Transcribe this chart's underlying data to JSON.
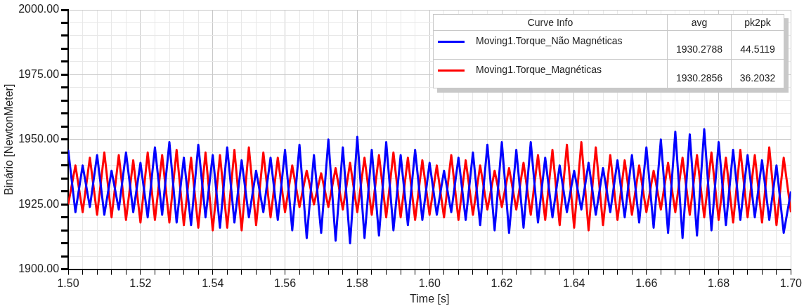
{
  "chart_data": {
    "type": "line",
    "xlabel": "Time [s]",
    "ylabel": "Binário [NewtonMeter]",
    "x": [
      1.5,
      1.502,
      1.504,
      1.506,
      1.508,
      1.51,
      1.512,
      1.514,
      1.516,
      1.518,
      1.52,
      1.522,
      1.524,
      1.526,
      1.528,
      1.53,
      1.532,
      1.534,
      1.536,
      1.538,
      1.54,
      1.542,
      1.544,
      1.546,
      1.548,
      1.55,
      1.552,
      1.554,
      1.556,
      1.558,
      1.56,
      1.562,
      1.564,
      1.566,
      1.568,
      1.57,
      1.572,
      1.574,
      1.576,
      1.578,
      1.58,
      1.582,
      1.584,
      1.586,
      1.588,
      1.59,
      1.592,
      1.594,
      1.596,
      1.598,
      1.6,
      1.602,
      1.604,
      1.606,
      1.608,
      1.61,
      1.612,
      1.614,
      1.616,
      1.618,
      1.62,
      1.622,
      1.624,
      1.626,
      1.628,
      1.63,
      1.632,
      1.634,
      1.636,
      1.638,
      1.64,
      1.642,
      1.644,
      1.646,
      1.648,
      1.65,
      1.652,
      1.654,
      1.656,
      1.658,
      1.66,
      1.662,
      1.664,
      1.666,
      1.668,
      1.67,
      1.672,
      1.674,
      1.676,
      1.678,
      1.68,
      1.682,
      1.684,
      1.686,
      1.688,
      1.69,
      1.692,
      1.694,
      1.696,
      1.698,
      1.7
    ],
    "series": [
      {
        "name": "Moving1.Torque_Não Magnéticas",
        "color": "#0000ff",
        "values": [
          1946,
          1922,
          1940,
          1924,
          1944,
          1921,
          1938,
          1923,
          1945,
          1922,
          1941,
          1920,
          1947,
          1921,
          1949,
          1918,
          1943,
          1917,
          1948,
          1920,
          1944,
          1916,
          1947,
          1918,
          1942,
          1920,
          1938,
          1922,
          1943,
          1919,
          1946,
          1915,
          1948,
          1912,
          1944,
          1914,
          1950,
          1911,
          1947,
          1910,
          1951,
          1912,
          1946,
          1913,
          1949,
          1915,
          1944,
          1917,
          1946,
          1919,
          1941,
          1921,
          1938,
          1922,
          1943,
          1919,
          1945,
          1917,
          1948,
          1915,
          1949,
          1914,
          1946,
          1916,
          1949,
          1918,
          1943,
          1920,
          1940,
          1922,
          1938,
          1923,
          1941,
          1921,
          1939,
          1922,
          1942,
          1920,
          1944,
          1918,
          1947,
          1916,
          1950,
          1914,
          1953,
          1912,
          1952,
          1913,
          1954,
          1915,
          1949,
          1917,
          1946,
          1919,
          1944,
          1920,
          1942,
          1919,
          1940,
          1914,
          1930
        ]
      },
      {
        "name": "Moving1.Torque_Magnéticas",
        "color": "#ff0000",
        "values": [
          1925,
          1940,
          1922,
          1943,
          1921,
          1945,
          1920,
          1944,
          1919,
          1942,
          1918,
          1945,
          1919,
          1944,
          1918,
          1946,
          1917,
          1943,
          1916,
          1945,
          1915,
          1944,
          1916,
          1946,
          1915,
          1947,
          1917,
          1945,
          1920,
          1943,
          1922,
          1940,
          1924,
          1938,
          1925,
          1937,
          1924,
          1939,
          1923,
          1941,
          1922,
          1943,
          1921,
          1944,
          1920,
          1945,
          1920,
          1943,
          1919,
          1942,
          1921,
          1940,
          1920,
          1944,
          1919,
          1942,
          1921,
          1940,
          1923,
          1938,
          1924,
          1939,
          1923,
          1941,
          1921,
          1944,
          1919,
          1946,
          1917,
          1948,
          1916,
          1949,
          1915,
          1947,
          1917,
          1944,
          1919,
          1942,
          1921,
          1940,
          1922,
          1938,
          1923,
          1941,
          1922,
          1943,
          1921,
          1944,
          1920,
          1945,
          1919,
          1943,
          1918,
          1946,
          1920,
          1944,
          1918,
          1947,
          1917,
          1943,
          1922
        ]
      }
    ],
    "xlim": [
      1.5,
      1.7
    ],
    "xticks": [
      {
        "value": 1.5,
        "label": "1.50"
      },
      {
        "value": 1.504,
        "label": null
      },
      {
        "value": 1.508,
        "label": null
      },
      {
        "value": 1.512,
        "label": null
      },
      {
        "value": 1.516,
        "label": null
      },
      {
        "value": 1.52,
        "label": "1.52"
      },
      {
        "value": 1.524,
        "label": null
      },
      {
        "value": 1.528,
        "label": null
      },
      {
        "value": 1.532,
        "label": null
      },
      {
        "value": 1.536,
        "label": null
      },
      {
        "value": 1.54,
        "label": "1.54"
      },
      {
        "value": 1.544,
        "label": null
      },
      {
        "value": 1.548,
        "label": null
      },
      {
        "value": 1.552,
        "label": null
      },
      {
        "value": 1.556,
        "label": null
      },
      {
        "value": 1.56,
        "label": "1.56"
      },
      {
        "value": 1.564,
        "label": null
      },
      {
        "value": 1.568,
        "label": null
      },
      {
        "value": 1.572,
        "label": null
      },
      {
        "value": 1.576,
        "label": null
      },
      {
        "value": 1.58,
        "label": "1.58"
      },
      {
        "value": 1.584,
        "label": null
      },
      {
        "value": 1.588,
        "label": null
      },
      {
        "value": 1.592,
        "label": null
      },
      {
        "value": 1.596,
        "label": null
      },
      {
        "value": 1.6,
        "label": "1.60"
      },
      {
        "value": 1.604,
        "label": null
      },
      {
        "value": 1.608,
        "label": null
      },
      {
        "value": 1.612,
        "label": null
      },
      {
        "value": 1.616,
        "label": null
      },
      {
        "value": 1.62,
        "label": "1.62"
      },
      {
        "value": 1.624,
        "label": null
      },
      {
        "value": 1.628,
        "label": null
      },
      {
        "value": 1.632,
        "label": null
      },
      {
        "value": 1.636,
        "label": null
      },
      {
        "value": 1.64,
        "label": "1.64"
      },
      {
        "value": 1.644,
        "label": null
      },
      {
        "value": 1.648,
        "label": null
      },
      {
        "value": 1.652,
        "label": null
      },
      {
        "value": 1.656,
        "label": null
      },
      {
        "value": 1.66,
        "label": "1.66"
      },
      {
        "value": 1.664,
        "label": null
      },
      {
        "value": 1.668,
        "label": null
      },
      {
        "value": 1.672,
        "label": null
      },
      {
        "value": 1.676,
        "label": null
      },
      {
        "value": 1.68,
        "label": "1.68"
      },
      {
        "value": 1.684,
        "label": null
      },
      {
        "value": 1.688,
        "label": null
      },
      {
        "value": 1.692,
        "label": null
      },
      {
        "value": 1.696,
        "label": null
      },
      {
        "value": 1.7,
        "label": "1.70"
      }
    ],
    "ylim": [
      1900,
      2000
    ],
    "yticks": [
      {
        "value": 1900,
        "label": "1900.00"
      },
      {
        "value": 1905,
        "label": null
      },
      {
        "value": 1910,
        "label": null
      },
      {
        "value": 1915,
        "label": null
      },
      {
        "value": 1920,
        "label": null
      },
      {
        "value": 1925,
        "label": "1925.00"
      },
      {
        "value": 1930,
        "label": null
      },
      {
        "value": 1935,
        "label": null
      },
      {
        "value": 1940,
        "label": null
      },
      {
        "value": 1945,
        "label": null
      },
      {
        "value": 1950,
        "label": "1950.00"
      },
      {
        "value": 1955,
        "label": null
      },
      {
        "value": 1960,
        "label": null
      },
      {
        "value": 1965,
        "label": null
      },
      {
        "value": 1970,
        "label": null
      },
      {
        "value": 1975,
        "label": "1975.00"
      },
      {
        "value": 1980,
        "label": null
      },
      {
        "value": 1985,
        "label": null
      },
      {
        "value": 1990,
        "label": null
      },
      {
        "value": 1995,
        "label": null
      },
      {
        "value": 2000,
        "label": "2000.00"
      }
    ],
    "annotations": [
      "Curve Info",
      "avg",
      "pk2pk",
      "1930.2788",
      "44.5119",
      "1930.2856",
      "36.2032"
    ],
    "grid": true,
    "legend": "top right",
    "marker": "none",
    "line_style": "solid"
  }
}
